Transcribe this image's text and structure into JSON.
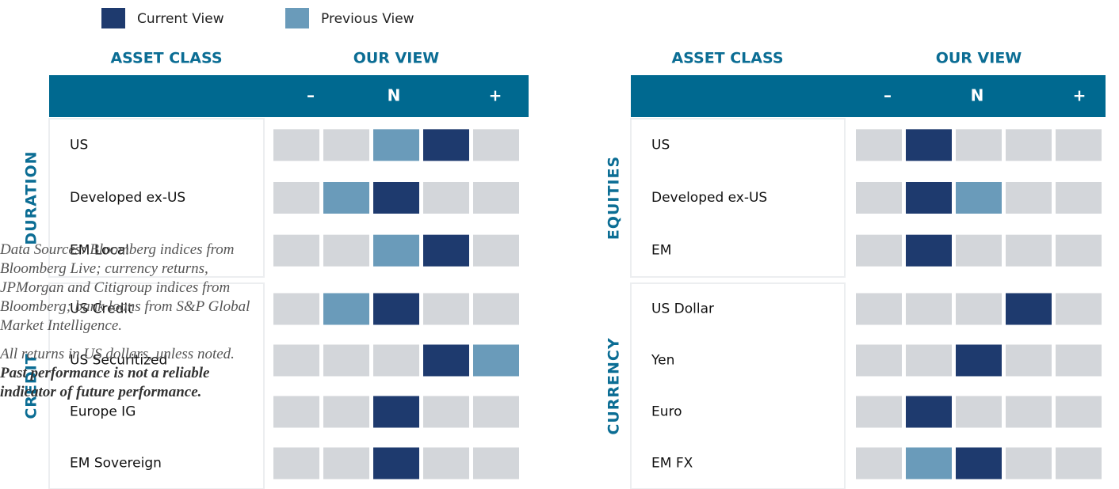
{
  "legend": [
    {
      "label": "Current View",
      "color": "#1e3a6e"
    },
    {
      "label": "Previous View",
      "color": "#6a9bba"
    }
  ],
  "panels": [
    {
      "asset_class_header": "ASSET CLASS",
      "view_header": "OUR VIEW",
      "scale": [
        "–",
        "N",
        "+"
      ],
      "groups": [
        {
          "name": "DURATION",
          "rows": [
            {
              "label": "US",
              "current": 3,
              "previous": 2
            },
            {
              "label": "Developed ex-US",
              "current": 2,
              "previous": 1
            },
            {
              "label": "EM Local",
              "current": 3,
              "previous": 2
            }
          ]
        },
        {
          "name": "CREDIT",
          "rows": [
            {
              "label": "US Credit",
              "current": 2,
              "previous": 1
            },
            {
              "label": "US Securitized",
              "current": 3,
              "previous": 4
            },
            {
              "label": "Europe IG",
              "current": 2,
              "previous": null
            },
            {
              "label": "EM Sovereign",
              "current": 2,
              "previous": null
            }
          ]
        }
      ]
    },
    {
      "asset_class_header": "ASSET CLASS",
      "view_header": "OUR VIEW",
      "scale": [
        "–",
        "N",
        "+"
      ],
      "groups": [
        {
          "name": "EQUITIES",
          "rows": [
            {
              "label": "US",
              "current": 1,
              "previous": null
            },
            {
              "label": "Developed ex-US",
              "current": 1,
              "previous": 2
            },
            {
              "label": "EM",
              "current": 1,
              "previous": null
            }
          ]
        },
        {
          "name": "CURRENCY",
          "rows": [
            {
              "label": "US Dollar",
              "current": 3,
              "previous": null
            },
            {
              "label": "Yen",
              "current": 2,
              "previous": null
            },
            {
              "label": "Euro",
              "current": 1,
              "previous": null
            },
            {
              "label": "EM FX",
              "current": 2,
              "previous": 1
            }
          ]
        }
      ]
    }
  ],
  "footnote": {
    "sources": "Data Sources: Bloomberg indices from Bloomberg Live; currency returns, JPMorgan and Citigroup indices from Bloomberg; bank loans from S&P Global Market Intelligence.",
    "returns": "All returns in US dollars, unless noted.",
    "disclaimer": "Past performance is not a reliable indicator of future performance."
  }
}
